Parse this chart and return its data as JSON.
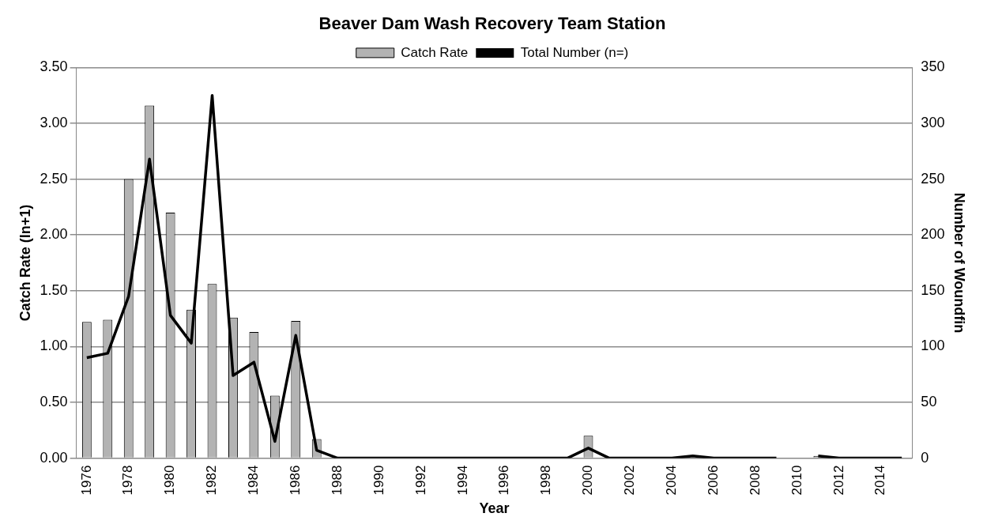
{
  "chart_data": {
    "type": "bar",
    "title": "Beaver Dam Wash Recovery Team Station",
    "xlabel": "Year",
    "ylabel": "Catch Rate (ln+1)",
    "y2label": "Number of Woundfin",
    "categories": [
      "1976",
      null,
      "1978",
      null,
      "1980",
      null,
      "1982",
      null,
      "1984",
      null,
      "1986",
      null,
      "1988",
      null,
      "1990",
      null,
      "1992",
      null,
      "1994",
      null,
      "1996",
      null,
      "1998",
      null,
      "2000",
      null,
      "2002",
      null,
      "2004",
      null,
      "2006",
      null,
      "2008",
      null,
      "2010",
      null,
      "2012",
      null,
      "2014",
      null
    ],
    "series": [
      {
        "name": "Catch Rate",
        "color": "#b3b3b3",
        "values": [
          1.22,
          1.24,
          2.5,
          3.16,
          2.2,
          1.33,
          1.56,
          1.26,
          1.13,
          0.56,
          1.23,
          0.17,
          0,
          0,
          0,
          0,
          0,
          0,
          0,
          0,
          0,
          0,
          0,
          0,
          0.2,
          0,
          0,
          0,
          0,
          0,
          0,
          0,
          0,
          0,
          null,
          0.02,
          0,
          0,
          0,
          0
        ]
      },
      {
        "name": "Total Number (n=)",
        "type": "line",
        "axis": "y2",
        "color": "#000000",
        "values": [
          90,
          94,
          145,
          268,
          128,
          103,
          325,
          74,
          86,
          15,
          110,
          7,
          0,
          0,
          0,
          0,
          0,
          0,
          0,
          0,
          0,
          0,
          0,
          0,
          9,
          0,
          0,
          0,
          0,
          2,
          0,
          0,
          0,
          0,
          null,
          2,
          0,
          0,
          0,
          0
        ]
      }
    ],
    "ylim": [
      0,
      3.5
    ],
    "yticks": [
      {
        "value": 0,
        "label": "0.00"
      },
      {
        "value": 0.5,
        "label": "0.50"
      },
      {
        "value": 1,
        "label": "1.00"
      },
      {
        "value": 1.5,
        "label": "1.50"
      },
      {
        "value": 2,
        "label": "2.00"
      },
      {
        "value": 2.5,
        "label": "2.50"
      },
      {
        "value": 3,
        "label": "3.00"
      },
      {
        "value": 3.5,
        "label": "3.50"
      }
    ],
    "y2lim": [
      0,
      350
    ],
    "y2ticks": [
      0,
      50,
      100,
      150,
      200,
      250,
      300,
      350
    ],
    "grid": "y",
    "legend": "top",
    "marker": "none",
    "line_style": "solid"
  }
}
